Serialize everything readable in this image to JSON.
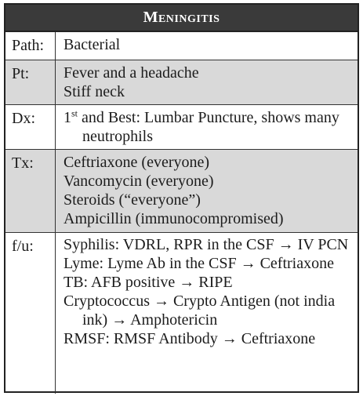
{
  "card": {
    "title": "Meningitis",
    "rows": {
      "path": {
        "label": "Path:",
        "lines": [
          "Bacterial"
        ]
      },
      "pt": {
        "label": "Pt:",
        "lines": [
          "Fever and a headache",
          "Stiff neck"
        ]
      },
      "dx": {
        "label": "Dx:",
        "ordinal": "1",
        "ordinal_suffix": "st",
        "text": " and Best: Lumbar Puncture, shows many neutrophils"
      },
      "tx": {
        "label": "Tx:",
        "lines": [
          "Ceftriaxone (everyone)",
          "Vancomycin (everyone)",
          "Steroids (“everyone”)",
          "Ampicillin (immunocompromised)"
        ]
      },
      "fu": {
        "label": "f/u:",
        "entries": [
          "Syphilis: VDRL, RPR in the CSF → IV PCN",
          "Lyme: Lyme Ab in the CSF → Ceftriaxone",
          "TB: AFB positive → RIPE",
          "Cryptococcus → Crypto Antigen (not india ink) → Amphotericin",
          "RMSF: RMSF Antibody → Ceftriaxone"
        ]
      }
    }
  },
  "colors": {
    "header_bg": "#3a3a3a",
    "header_text": "#ffffff",
    "shaded_row": "#d9d9d9",
    "border": "#222222"
  }
}
